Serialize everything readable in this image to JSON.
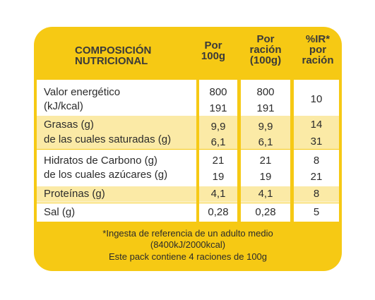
{
  "header": {
    "composition": [
      "COMPOSICIÓN",
      "NUTRICIONAL"
    ],
    "per100g": [
      "Por",
      "100g"
    ],
    "perServing": [
      "Por",
      "ración",
      "(100g)"
    ],
    "ir": [
      "%IR*",
      "por",
      "ración"
    ]
  },
  "rows": [
    {
      "labels": [
        "Valor energético",
        "(kJ/kcal)"
      ],
      "per100g": [
        "800",
        "191"
      ],
      "perServing": [
        "800",
        "191"
      ],
      "ir": [
        "10"
      ]
    },
    {
      "labels": [
        "Grasas (g)",
        "de las cuales saturadas (g)"
      ],
      "per100g": [
        "9,9",
        "6,1"
      ],
      "perServing": [
        "9,9",
        "6,1"
      ],
      "ir": [
        "14",
        "31"
      ]
    },
    {
      "labels": [
        "Hidratos de Carbono (g)",
        "de los cuales azúcares (g)"
      ],
      "per100g": [
        "21",
        "19"
      ],
      "perServing": [
        "21",
        "19"
      ],
      "ir": [
        "8",
        "21"
      ]
    },
    {
      "labels": [
        "Proteínas (g)"
      ],
      "per100g": [
        "4,1"
      ],
      "perServing": [
        "4,1"
      ],
      "ir": [
        "8"
      ]
    },
    {
      "labels": [
        "Sal (g)"
      ],
      "per100g": [
        "0,28"
      ],
      "perServing": [
        "0,28"
      ],
      "ir": [
        "5"
      ]
    }
  ],
  "footnote": [
    "*Ingesta de referencia de un adulto medio",
    "(8400kJ/2000kcal)",
    "Este pack contiene 4 raciones de 100g"
  ],
  "colors": {
    "frame": "#f6c914",
    "band": "#fbeaa6",
    "panel": "#ffffff"
  }
}
